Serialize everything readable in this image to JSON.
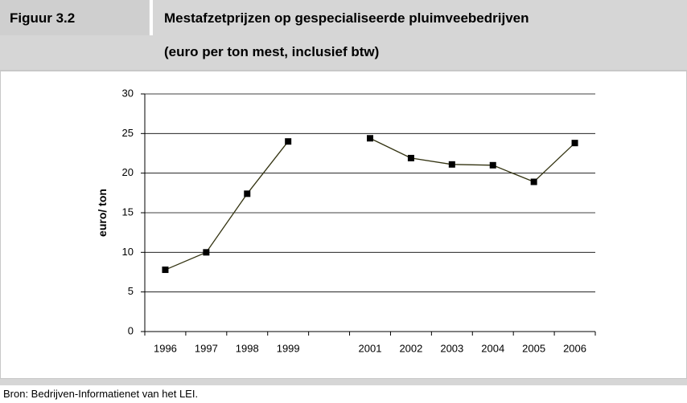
{
  "figure_label": "Figuur 3.2",
  "source": "Bron: Bedrijven-Informatienet van het LEI.",
  "chart_data": {
    "type": "line",
    "title": "Mestafzetprijzen op gespecialiseerde pluimveebedrijven",
    "subtitle": "(euro per ton mest, inclusief btw)",
    "ylabel": "euro/ ton",
    "categories": [
      "1996",
      "1997",
      "1998",
      "1999",
      null,
      "2001",
      "2002",
      "2003",
      "2004",
      "2005",
      "2006"
    ],
    "values": [
      7.8,
      10,
      17.4,
      24,
      null,
      24.4,
      21.9,
      21.1,
      21,
      18.9,
      23.8
    ],
    "color": "#333311",
    "marker_color": "#000000",
    "ylim": [
      0,
      30
    ],
    "yticks": [
      0,
      5,
      10,
      15,
      20,
      25,
      30
    ],
    "grid": true
  }
}
